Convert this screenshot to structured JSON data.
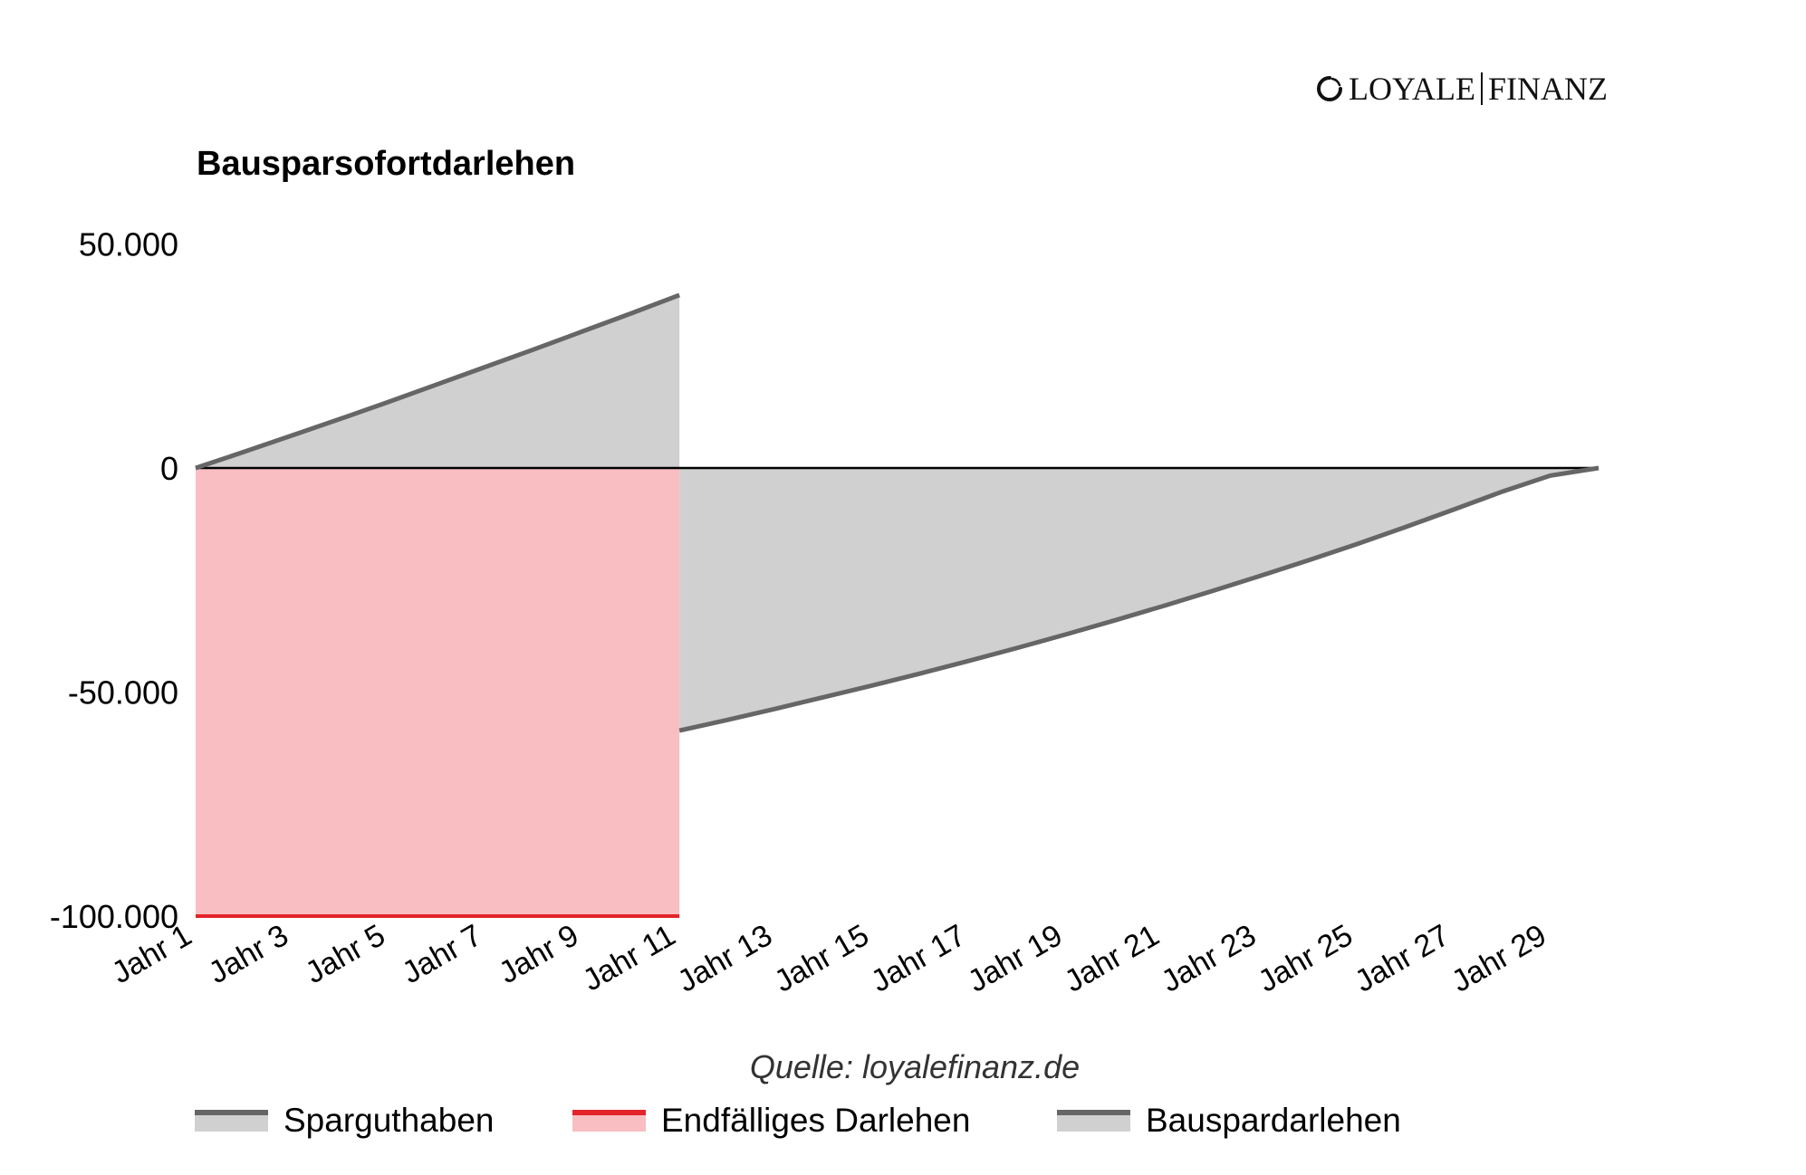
{
  "logo": {
    "left": "LOYALE",
    "right": "FINANZ"
  },
  "title": "Bausparsofortdarlehen",
  "source": "Quelle: loyalefinanz.de",
  "colors": {
    "savings_line": "#666666",
    "savings_fill": "#d0d0d0",
    "bullet_line": "#e3242b",
    "bullet_fill": "#f8bec1",
    "loan_line": "#666666",
    "loan_fill": "#d0d0d0",
    "zero_line": "#000000"
  },
  "legend": [
    {
      "label": "Sparguthaben",
      "line": "#666666",
      "fill": "#d0d0d0"
    },
    {
      "label": "Endfälliges Darlehen",
      "line": "#e3242b",
      "fill": "#f8bec1"
    },
    {
      "label": "Bauspardarlehen",
      "line": "#666666",
      "fill": "#d0d0d0"
    }
  ],
  "chart_data": {
    "type": "area",
    "title": "Bausparsofortdarlehen",
    "xlabel": "",
    "ylabel": "",
    "ylim": [
      -100000,
      50000
    ],
    "yticks": [
      50000,
      0,
      -50000,
      -100000
    ],
    "ytick_labels": [
      "50.000",
      "0",
      "-50.000",
      "-100.000"
    ],
    "x": [
      "Jahr 1",
      "Jahr 2",
      "Jahr 3",
      "Jahr 4",
      "Jahr 5",
      "Jahr 6",
      "Jahr 7",
      "Jahr 8",
      "Jahr 9",
      "Jahr 10",
      "Jahr 11",
      "Jahr 12",
      "Jahr 13",
      "Jahr 14",
      "Jahr 15",
      "Jahr 16",
      "Jahr 17",
      "Jahr 18",
      "Jahr 19",
      "Jahr 20",
      "Jahr 21",
      "Jahr 22",
      "Jahr 23",
      "Jahr 24",
      "Jahr 25",
      "Jahr 26",
      "Jahr 27",
      "Jahr 28",
      "Jahr 29",
      "Jahr 30"
    ],
    "xtick_labels": [
      "Jahr 1",
      "Jahr 3",
      "Jahr 5",
      "Jahr 7",
      "Jahr 9",
      "Jahr 11",
      "Jahr 13",
      "Jahr 15",
      "Jahr 17",
      "Jahr 19",
      "Jahr 21",
      "Jahr 23",
      "Jahr 25",
      "Jahr 27",
      "Jahr 29"
    ],
    "grid": false,
    "legend_position": "bottom",
    "series": [
      {
        "name": "Sparguthaben",
        "start_index": 0,
        "values": [
          0,
          3600,
          7300,
          11000,
          14800,
          18700,
          22600,
          26500,
          30500,
          34500,
          38600
        ]
      },
      {
        "name": "Endfälliges Darlehen",
        "start_index": 0,
        "values": [
          -100000,
          -100000,
          -100000,
          -100000,
          -100000,
          -100000,
          -100000,
          -100000,
          -100000,
          -100000,
          -100000
        ]
      },
      {
        "name": "Bauspardarlehen",
        "start_index": 10,
        "values": [
          -58600,
          -56200,
          -53700,
          -51100,
          -48500,
          -45800,
          -43000,
          -40100,
          -37100,
          -34000,
          -30800,
          -27500,
          -24100,
          -20600,
          -17000,
          -13200,
          -9300,
          -5300,
          -1700,
          0
        ]
      }
    ]
  }
}
